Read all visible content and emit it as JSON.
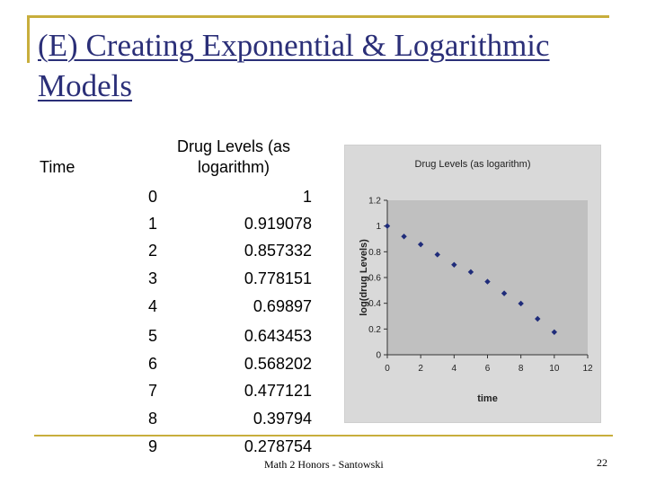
{
  "slide": {
    "title": "(E) Creating Exponential & Logarithmic Models",
    "footer": "Math 2 Honors - Santowski",
    "page_number": "22"
  },
  "table": {
    "headers": {
      "time": "Time",
      "drug": "Drug Levels (as logarithm)"
    },
    "time": [
      "0",
      "1",
      "2",
      "3",
      "4",
      "5",
      "6",
      "7",
      "8",
      "9"
    ],
    "drug": [
      "1",
      "0.919078",
      "0.857332",
      "0.778151",
      "0.69897",
      "0.643453",
      "0.568202",
      "0.477121",
      "0.39794",
      "0.278754"
    ]
  },
  "chart_data": {
    "type": "scatter",
    "title": "Drug Levels (as logarithm)",
    "xlabel": "time",
    "ylabel": "log(drug Levels)",
    "xlim": [
      0,
      12
    ],
    "ylim": [
      0,
      1.2
    ],
    "xticks": [
      "0",
      "2",
      "4",
      "6",
      "8",
      "10",
      "12"
    ],
    "yticks": [
      "0",
      "0.2",
      "0.4",
      "0.6",
      "0.8",
      "1",
      "1.2"
    ],
    "grid": false,
    "legend": "none",
    "marker_color": "#1f2c7a",
    "plot_background": "#c0c0c0",
    "x": [
      0,
      1,
      2,
      3,
      4,
      5,
      6,
      7,
      8,
      9,
      10
    ],
    "y": [
      1,
      0.919,
      0.857,
      0.778,
      0.699,
      0.643,
      0.568,
      0.477,
      0.398,
      0.279,
      0.176
    ]
  }
}
